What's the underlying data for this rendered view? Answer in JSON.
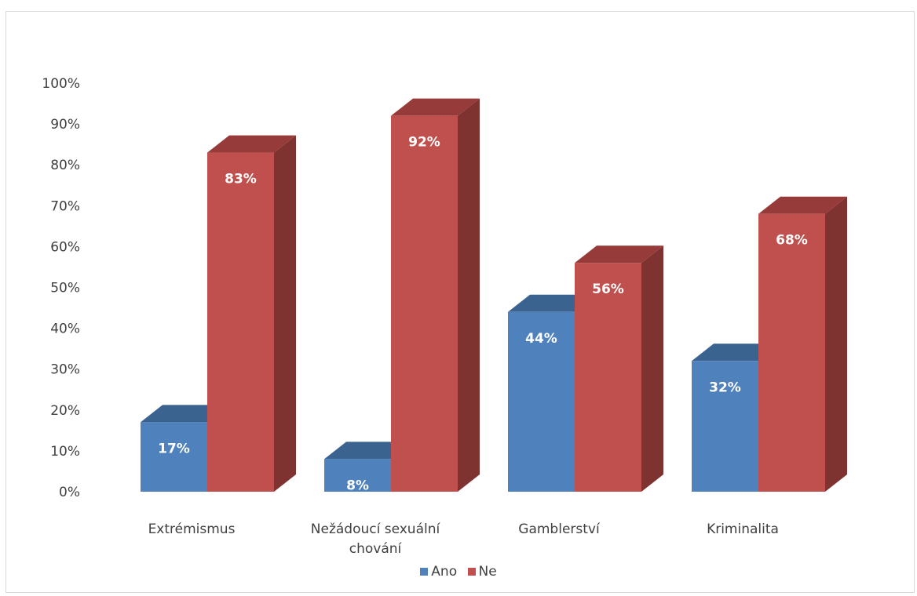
{
  "chart_data": {
    "type": "bar",
    "categories": [
      "Extrémismus",
      "Nežádoucí sexuální chování",
      "Gamblerství",
      "Kriminalita"
    ],
    "category_lines": [
      [
        "Extrémismus"
      ],
      [
        "Nežádoucí sexuální",
        "chování"
      ],
      [
        "Gamblerství"
      ],
      [
        "Kriminalita"
      ]
    ],
    "series": [
      {
        "name": "Ano",
        "values": [
          17,
          8,
          44,
          32
        ],
        "labels": [
          "17%",
          "8%",
          "44%",
          "32%"
        ],
        "color": "#4f81bd",
        "top_color": "#3b6390",
        "side_color": "#35597f"
      },
      {
        "name": "Ne",
        "values": [
          83,
          92,
          56,
          68
        ],
        "labels": [
          "83%",
          "92%",
          "56%",
          "68%"
        ],
        "color": "#c0504d",
        "top_color": "#963b39",
        "side_color": "#7f3331"
      }
    ],
    "ylim": [
      0,
      100
    ],
    "yticks": [
      "0%",
      "10%",
      "20%",
      "30%",
      "40%",
      "50%",
      "60%",
      "70%",
      "80%",
      "90%",
      "100%"
    ],
    "grid": false,
    "legend_position": "bottom",
    "style": "3d-column"
  }
}
